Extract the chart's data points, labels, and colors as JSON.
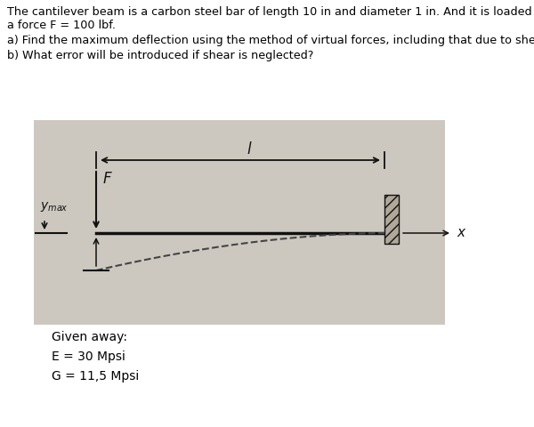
{
  "title_line1": "The cantilever beam is a carbon steel bar of length 10 in and diameter 1 in. And it is loaded by",
  "title_line2": "a force F = 100 lbf.",
  "part_a": "a) Find the maximum deflection using the method of virtual forces, including that due to shear.",
  "part_b": "b) What error will be introduced if shear is neglected?",
  "given_label": "Given away:",
  "E_label": "E = 30 Mpsi",
  "G_label": "G = 11,5 Mpsi",
  "diagram_bg": "#cdc8bf",
  "beam_color": "#111111",
  "wall_hatch_color": "#888888",
  "dashed_color": "#444444",
  "text_color": "#000000",
  "fig_bg": "#ffffff",
  "font_size_body": 9.2,
  "font_size_given": 10.0
}
